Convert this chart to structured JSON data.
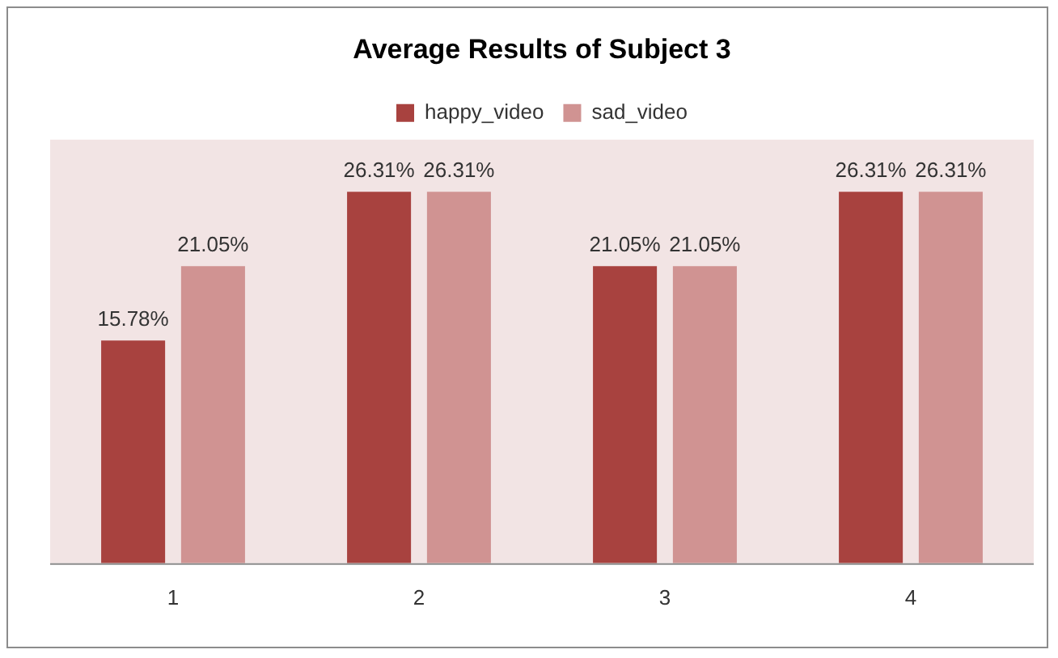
{
  "chart_data": {
    "type": "bar",
    "title": "Average Results of Subject 3",
    "categories": [
      "1",
      "2",
      "3",
      "4"
    ],
    "series": [
      {
        "name": "happy_video",
        "color": "#a8423f",
        "values": [
          15.78,
          26.31,
          21.05,
          26.31
        ],
        "value_labels": [
          "15.78%",
          "26.31%",
          "21.05%",
          "26.31%"
        ]
      },
      {
        "name": "sad_video",
        "color": "#d09392",
        "values": [
          21.05,
          26.31,
          21.05,
          26.31
        ],
        "value_labels": [
          "21.05%",
          "26.31%",
          "21.05%",
          "26.31%"
        ]
      }
    ],
    "ylim": [
      0,
      30
    ],
    "legend": "top",
    "grid": false,
    "tick_labels": "x"
  }
}
